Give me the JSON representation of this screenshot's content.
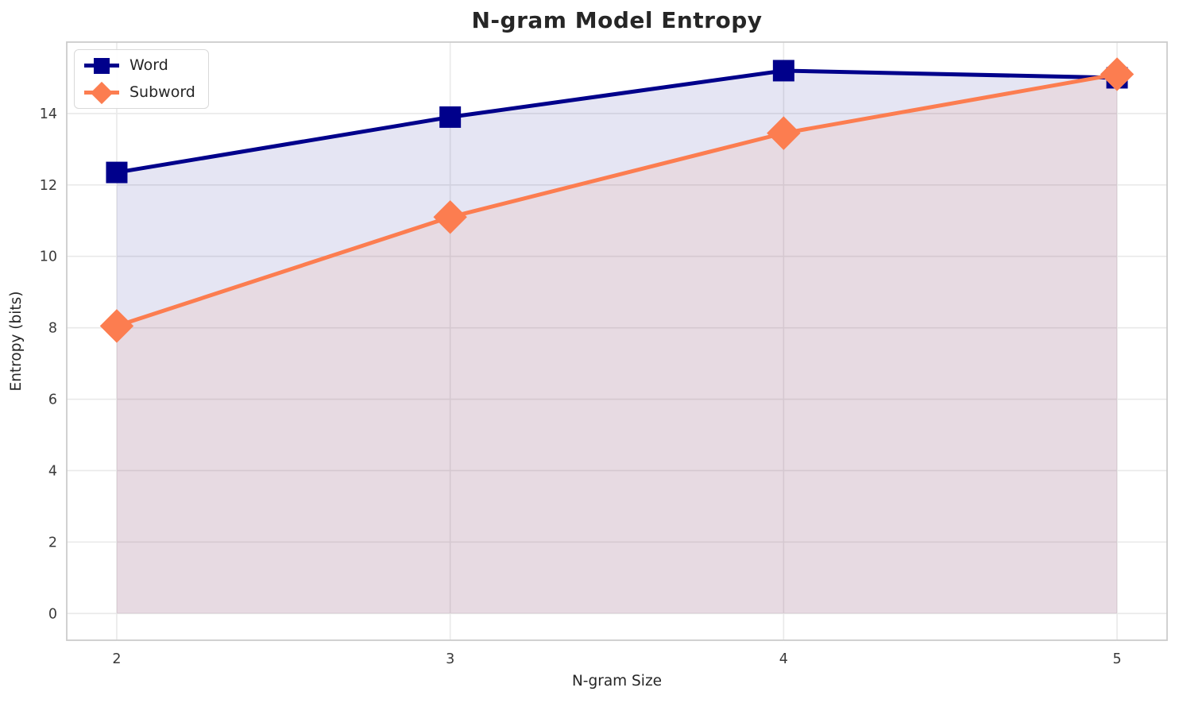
{
  "chart_data": {
    "type": "line",
    "title": "N-gram Model Entropy",
    "xlabel": "N-gram Size",
    "ylabel": "Entropy (bits)",
    "x": [
      2,
      3,
      4,
      5
    ],
    "series": [
      {
        "name": "Word",
        "values": [
          12.35,
          13.9,
          15.2,
          15.0
        ],
        "color": "#00008b",
        "marker": "square",
        "fill_to_zero": true
      },
      {
        "name": "Subword",
        "values": [
          8.05,
          11.1,
          13.45,
          15.1
        ],
        "color": "#fc7d50",
        "marker": "diamond",
        "fill_to_zero": true
      }
    ],
    "xticks": [
      "2",
      "3",
      "4",
      "5"
    ],
    "xtick_values": [
      2,
      3,
      4,
      5
    ],
    "yticks": [
      "0",
      "2",
      "4",
      "6",
      "8",
      "10",
      "12",
      "14"
    ],
    "ytick_values": [
      0,
      2,
      4,
      6,
      8,
      10,
      12,
      14
    ],
    "xlim": [
      1.85,
      5.15
    ],
    "ylim": [
      -0.75,
      16.0
    ],
    "grid": true,
    "legend_position": "upper left",
    "fill_alpha": 0.1
  }
}
